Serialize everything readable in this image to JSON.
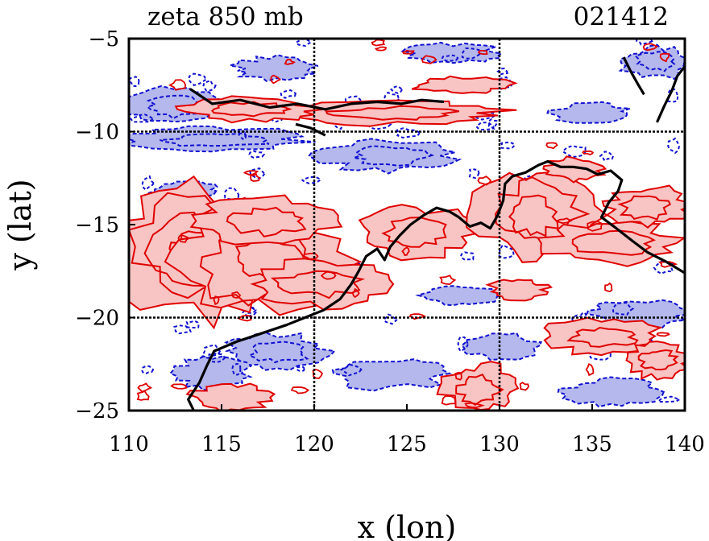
{
  "header": {
    "left_title": "zeta 850 mb",
    "right_title": "021412"
  },
  "chart_data": {
    "type": "heatmap",
    "xlabel": "x (lon)",
    "ylabel": "y (lat)",
    "xlim": [
      110,
      140
    ],
    "ylim": [
      -25,
      -5
    ],
    "x_ticks": [
      110,
      115,
      120,
      125,
      130,
      135,
      140
    ],
    "y_ticks": [
      -5,
      -10,
      -15,
      -20,
      -25
    ],
    "x_tick_labels": [
      "110",
      "115",
      "120",
      "125",
      "130",
      "135",
      "140"
    ],
    "y_tick_labels": [
      "−5",
      "−10",
      "−15",
      "−20",
      "−25"
    ],
    "grid": true,
    "grid_lines_x": [
      120,
      130
    ],
    "grid_lines_y": [
      -10,
      -20
    ],
    "colors": {
      "positive": "#e00000",
      "positive_fill": "#f8c4c4",
      "negative": "#1010d0",
      "negative_fill": "#b4b8ec",
      "coastline": "#000000"
    },
    "coastline": [
      [
        [
          113.5,
          -25
        ],
        [
          113.2,
          -24.4
        ],
        [
          113.8,
          -23.5
        ],
        [
          114.2,
          -22.6
        ],
        [
          114.6,
          -21.8
        ],
        [
          115.8,
          -21.3
        ],
        [
          117.0,
          -20.9
        ],
        [
          118.5,
          -20.4
        ],
        [
          119.5,
          -20.0
        ],
        [
          120.5,
          -19.6
        ],
        [
          121.4,
          -19.0
        ],
        [
          122.0,
          -18.2
        ],
        [
          122.4,
          -17.5
        ],
        [
          122.8,
          -16.7
        ],
        [
          123.4,
          -16.3
        ],
        [
          123.8,
          -16.9
        ],
        [
          124.1,
          -16.2
        ],
        [
          124.6,
          -15.6
        ],
        [
          125.2,
          -15.0
        ],
        [
          125.9,
          -14.5
        ],
        [
          126.6,
          -14.1
        ],
        [
          127.3,
          -14.3
        ],
        [
          127.8,
          -14.6
        ],
        [
          128.4,
          -15.1
        ],
        [
          129.0,
          -14.9
        ],
        [
          129.5,
          -15.2
        ],
        [
          129.9,
          -14.5
        ],
        [
          130.2,
          -13.7
        ],
        [
          130.3,
          -12.8
        ],
        [
          130.7,
          -12.4
        ],
        [
          131.4,
          -12.2
        ],
        [
          132.1,
          -11.8
        ],
        [
          132.6,
          -11.6
        ],
        [
          133.3,
          -11.9
        ],
        [
          134.0,
          -11.9
        ],
        [
          134.7,
          -12.0
        ],
        [
          135.3,
          -12.3
        ],
        [
          136.0,
          -12.1
        ],
        [
          136.6,
          -12.6
        ],
        [
          136.4,
          -13.2
        ],
        [
          135.9,
          -13.8
        ],
        [
          135.5,
          -14.6
        ],
        [
          136.3,
          -15.2
        ],
        [
          137.2,
          -15.9
        ],
        [
          138.0,
          -16.5
        ],
        [
          139.0,
          -17.0
        ],
        [
          140.0,
          -17.6
        ]
      ],
      [
        [
          138.5,
          -9.5
        ],
        [
          138.9,
          -8.6
        ],
        [
          139.3,
          -7.8
        ],
        [
          139.6,
          -7.0
        ],
        [
          140.0,
          -6.5
        ]
      ],
      [
        [
          136.7,
          -6.0
        ],
        [
          137.1,
          -6.8
        ],
        [
          137.5,
          -7.5
        ],
        [
          137.8,
          -8.0
        ]
      ],
      [
        [
          113.3,
          -7.7
        ],
        [
          114.5,
          -8.5
        ],
        [
          116.0,
          -8.3
        ],
        [
          117.6,
          -8.7
        ],
        [
          119.1,
          -8.5
        ],
        [
          120.6,
          -8.8
        ],
        [
          122.0,
          -8.5
        ],
        [
          123.4,
          -8.4
        ],
        [
          124.7,
          -8.5
        ],
        [
          125.8,
          -8.3
        ],
        [
          127.0,
          -8.4
        ]
      ],
      [
        [
          119.0,
          -9.6
        ],
        [
          119.8,
          -9.8
        ],
        [
          120.6,
          -10.2
        ]
      ]
    ],
    "positive_regions": [
      {
        "center": [
          113.5,
          -16.5
        ],
        "radius": [
          4.0,
          3.4
        ],
        "levels": 4
      },
      {
        "center": [
          117.0,
          -17.0
        ],
        "radius": [
          4.5,
          2.6
        ],
        "levels": 3
      },
      {
        "center": [
          117.5,
          -14.8
        ],
        "radius": [
          3.5,
          1.2
        ],
        "levels": 2
      },
      {
        "center": [
          120.5,
          -18.2
        ],
        "radius": [
          4.0,
          1.2
        ],
        "levels": 2
      },
      {
        "center": [
          125.5,
          -15.4
        ],
        "radius": [
          3.0,
          1.3
        ],
        "levels": 2
      },
      {
        "center": [
          132.0,
          -14.5
        ],
        "radius": [
          3.2,
          2.4
        ],
        "levels": 3
      },
      {
        "center": [
          136.0,
          -16.0
        ],
        "radius": [
          3.5,
          1.1
        ],
        "levels": 2
      },
      {
        "center": [
          138.0,
          -14.0
        ],
        "radius": [
          2.2,
          1.0
        ],
        "levels": 2
      },
      {
        "center": [
          124.5,
          -9.0
        ],
        "radius": [
          5.5,
          0.6
        ],
        "levels": 2
      },
      {
        "center": [
          116.5,
          -8.8
        ],
        "radius": [
          3.5,
          0.6
        ],
        "levels": 2
      },
      {
        "center": [
          128.0,
          -7.5
        ],
        "radius": [
          2.5,
          0.4
        ],
        "levels": 1
      },
      {
        "center": [
          135.5,
          -21.0
        ],
        "radius": [
          3.0,
          0.9
        ],
        "levels": 2
      },
      {
        "center": [
          138.5,
          -22.3
        ],
        "radius": [
          1.6,
          0.9
        ],
        "levels": 2
      },
      {
        "center": [
          129.0,
          -23.8
        ],
        "radius": [
          2.0,
          1.2
        ],
        "levels": 2
      },
      {
        "center": [
          115.5,
          -24.3
        ],
        "radius": [
          2.0,
          0.7
        ],
        "levels": 1
      },
      {
        "center": [
          131.0,
          -18.5
        ],
        "radius": [
          1.5,
          0.5
        ],
        "levels": 1
      },
      {
        "center": [
          134.0,
          -12.0
        ],
        "radius": [
          1.5,
          0.6
        ],
        "levels": 1
      }
    ],
    "negative_regions": [
      {
        "center": [
          114.5,
          -10.4
        ],
        "radius": [
          4.8,
          0.6
        ],
        "levels": 2
      },
      {
        "center": [
          112.5,
          -8.6
        ],
        "radius": [
          2.8,
          0.9
        ],
        "levels": 2
      },
      {
        "center": [
          118.0,
          -6.6
        ],
        "radius": [
          2.2,
          0.6
        ],
        "levels": 1
      },
      {
        "center": [
          124.0,
          -11.3
        ],
        "radius": [
          3.5,
          0.8
        ],
        "levels": 2
      },
      {
        "center": [
          127.5,
          -5.8
        ],
        "radius": [
          2.5,
          0.5
        ],
        "levels": 1
      },
      {
        "center": [
          138.5,
          -6.3
        ],
        "radius": [
          1.8,
          0.8
        ],
        "levels": 2
      },
      {
        "center": [
          135.0,
          -9.0
        ],
        "radius": [
          2.0,
          0.5
        ],
        "levels": 1
      },
      {
        "center": [
          118.0,
          -21.8
        ],
        "radius": [
          2.6,
          0.9
        ],
        "levels": 2
      },
      {
        "center": [
          114.5,
          -23.0
        ],
        "radius": [
          2.0,
          0.8
        ],
        "levels": 1
      },
      {
        "center": [
          124.0,
          -23.0
        ],
        "radius": [
          3.0,
          0.8
        ],
        "levels": 1
      },
      {
        "center": [
          130.0,
          -21.5
        ],
        "radius": [
          2.0,
          0.7
        ],
        "levels": 1
      },
      {
        "center": [
          137.5,
          -19.8
        ],
        "radius": [
          2.5,
          0.7
        ],
        "levels": 1
      },
      {
        "center": [
          136.0,
          -24.0
        ],
        "radius": [
          2.5,
          0.7
        ],
        "levels": 1
      },
      {
        "center": [
          128.0,
          -18.8
        ],
        "radius": [
          2.0,
          0.5
        ],
        "levels": 1
      },
      {
        "center": [
          113.0,
          -13.2
        ],
        "radius": [
          1.8,
          0.5
        ],
        "levels": 1
      }
    ]
  }
}
